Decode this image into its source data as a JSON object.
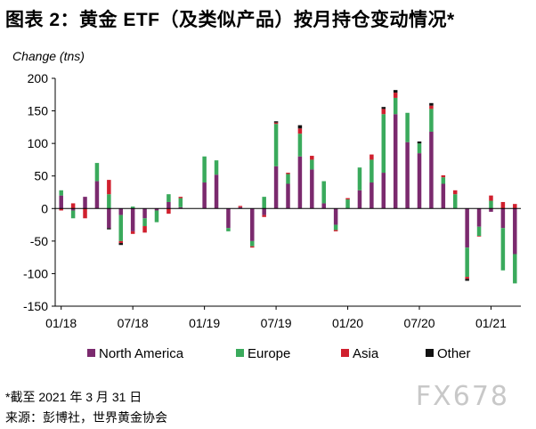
{
  "title": "图表 2：黄金 ETF（及类似产品）按月持仓变动情况*",
  "footnote": "*截至 2021 年 3 月 31 日",
  "source": "来源：彭博社，世界黄金协会",
  "watermark": "FX678",
  "chart_data": {
    "type": "bar",
    "stacked": true,
    "title": "图表 2：黄金 ETF（及类似产品）按月持仓变动情况*",
    "ylabel": "Change (tns)",
    "ylim": [
      -150,
      200
    ],
    "yticks": [
      -150,
      -100,
      -50,
      0,
      50,
      100,
      150,
      200
    ],
    "legend_position": "bottom",
    "categories": [
      "2018-01",
      "2018-02",
      "2018-03",
      "2018-04",
      "2018-05",
      "2018-06",
      "2018-07",
      "2018-08",
      "2018-09",
      "2018-10",
      "2018-11",
      "2018-12",
      "2019-01",
      "2019-02",
      "2019-03",
      "2019-04",
      "2019-05",
      "2019-06",
      "2019-07",
      "2019-08",
      "2019-09",
      "2019-10",
      "2019-11",
      "2019-12",
      "2020-01",
      "2020-02",
      "2020-03",
      "2020-04",
      "2020-05",
      "2020-06",
      "2020-07",
      "2020-08",
      "2020-09",
      "2020-10",
      "2020-11",
      "2020-12",
      "2021-01",
      "2021-02",
      "2021-03"
    ],
    "x_tick_labels": [
      {
        "index": 0,
        "label": "01/18"
      },
      {
        "index": 6,
        "label": "07/18"
      },
      {
        "index": 12,
        "label": "01/19"
      },
      {
        "index": 18,
        "label": "07/19"
      },
      {
        "index": 24,
        "label": "01/20"
      },
      {
        "index": 30,
        "label": "07/20"
      },
      {
        "index": 36,
        "label": "01/21"
      }
    ],
    "series": [
      {
        "name": "North America",
        "color": "#7b2a6e",
        "values": [
          20,
          -3,
          18,
          42,
          -30,
          -10,
          -35,
          -15,
          -3,
          10,
          2,
          0,
          40,
          52,
          -30,
          2,
          -50,
          -10,
          65,
          38,
          80,
          60,
          8,
          -25,
          0,
          28,
          40,
          55,
          145,
          102,
          85,
          118,
          38,
          0,
          -60,
          -28,
          -5,
          -30,
          -70
        ]
      },
      {
        "name": "Europe",
        "color": "#3aaa5c",
        "values": [
          8,
          -12,
          0,
          28,
          22,
          -40,
          3,
          -12,
          -18,
          12,
          14,
          0,
          40,
          22,
          -5,
          0,
          -8,
          18,
          65,
          15,
          35,
          15,
          34,
          -8,
          14,
          35,
          35,
          90,
          25,
          45,
          15,
          35,
          10,
          22,
          -45,
          -14,
          12,
          -65,
          -45
        ]
      },
      {
        "name": "Asia",
        "color": "#d0202e",
        "values": [
          -3,
          8,
          -15,
          0,
          22,
          -3,
          -4,
          -10,
          0,
          -8,
          2,
          0,
          0,
          0,
          0,
          2,
          -2,
          -3,
          2,
          2,
          8,
          6,
          0,
          -2,
          2,
          0,
          8,
          8,
          8,
          0,
          0,
          5,
          3,
          6,
          -3,
          -1,
          8,
          10,
          7
        ]
      },
      {
        "name": "Other",
        "color": "#111111",
        "values": [
          0,
          0,
          0,
          0,
          -2,
          -3,
          0,
          0,
          0,
          0,
          0,
          0,
          0,
          0,
          0,
          0,
          0,
          0,
          2,
          0,
          5,
          0,
          0,
          0,
          0,
          0,
          0,
          3,
          4,
          0,
          3,
          4,
          0,
          0,
          -3,
          0,
          0,
          0,
          0
        ]
      }
    ]
  }
}
